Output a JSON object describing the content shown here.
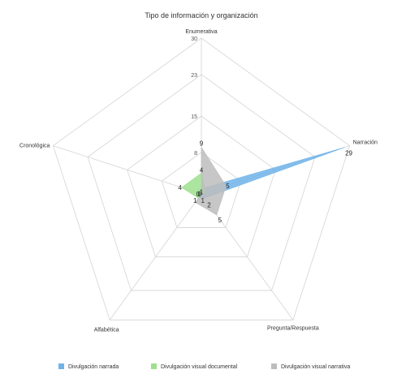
{
  "chart_data": {
    "type": "radar",
    "title": "Tipo de información y organización",
    "axes": [
      "Enumerativa",
      "Narración",
      "Pregunta/Respuesta",
      "Alfabética",
      "Cronológica"
    ],
    "range": [
      0,
      30
    ],
    "ticks": [
      8,
      15,
      23,
      30
    ],
    "series": [
      {
        "name": "Divulgación narrada",
        "values": [
          1,
          29,
          1,
          1,
          1
        ],
        "color": "#6fb3ea"
      },
      {
        "name": "Divulgación visual documental",
        "values": [
          4,
          1,
          0,
          1,
          4
        ],
        "color": "#9de08e"
      },
      {
        "name": "Divulgación visual narrativa",
        "values": [
          9,
          5,
          5,
          2,
          0
        ],
        "color": "#bdbdbd"
      }
    ],
    "data_labels": [
      {
        "text": "9",
        "axis": 0,
        "value": 9
      },
      {
        "text": "4",
        "axis": 0,
        "value": 4
      },
      {
        "text": "1",
        "axis": 0,
        "value": 1
      },
      {
        "text": "29",
        "axis": 1,
        "value": 29
      },
      {
        "text": "5",
        "axis": 1,
        "value": 5
      },
      {
        "text": "5",
        "axis": 2,
        "value": 5
      },
      {
        "text": "2",
        "axis": 2,
        "value": 2
      },
      {
        "text": "1",
        "axis": 2,
        "value": 1
      },
      {
        "text": "0",
        "axis": 2,
        "value": 0
      },
      {
        "text": "1",
        "axis": 3,
        "value": 1
      },
      {
        "text": "4",
        "axis": 4,
        "value": 4
      },
      {
        "text": "0",
        "axis": 4,
        "value": 0
      }
    ],
    "legend_position": "bottom"
  }
}
